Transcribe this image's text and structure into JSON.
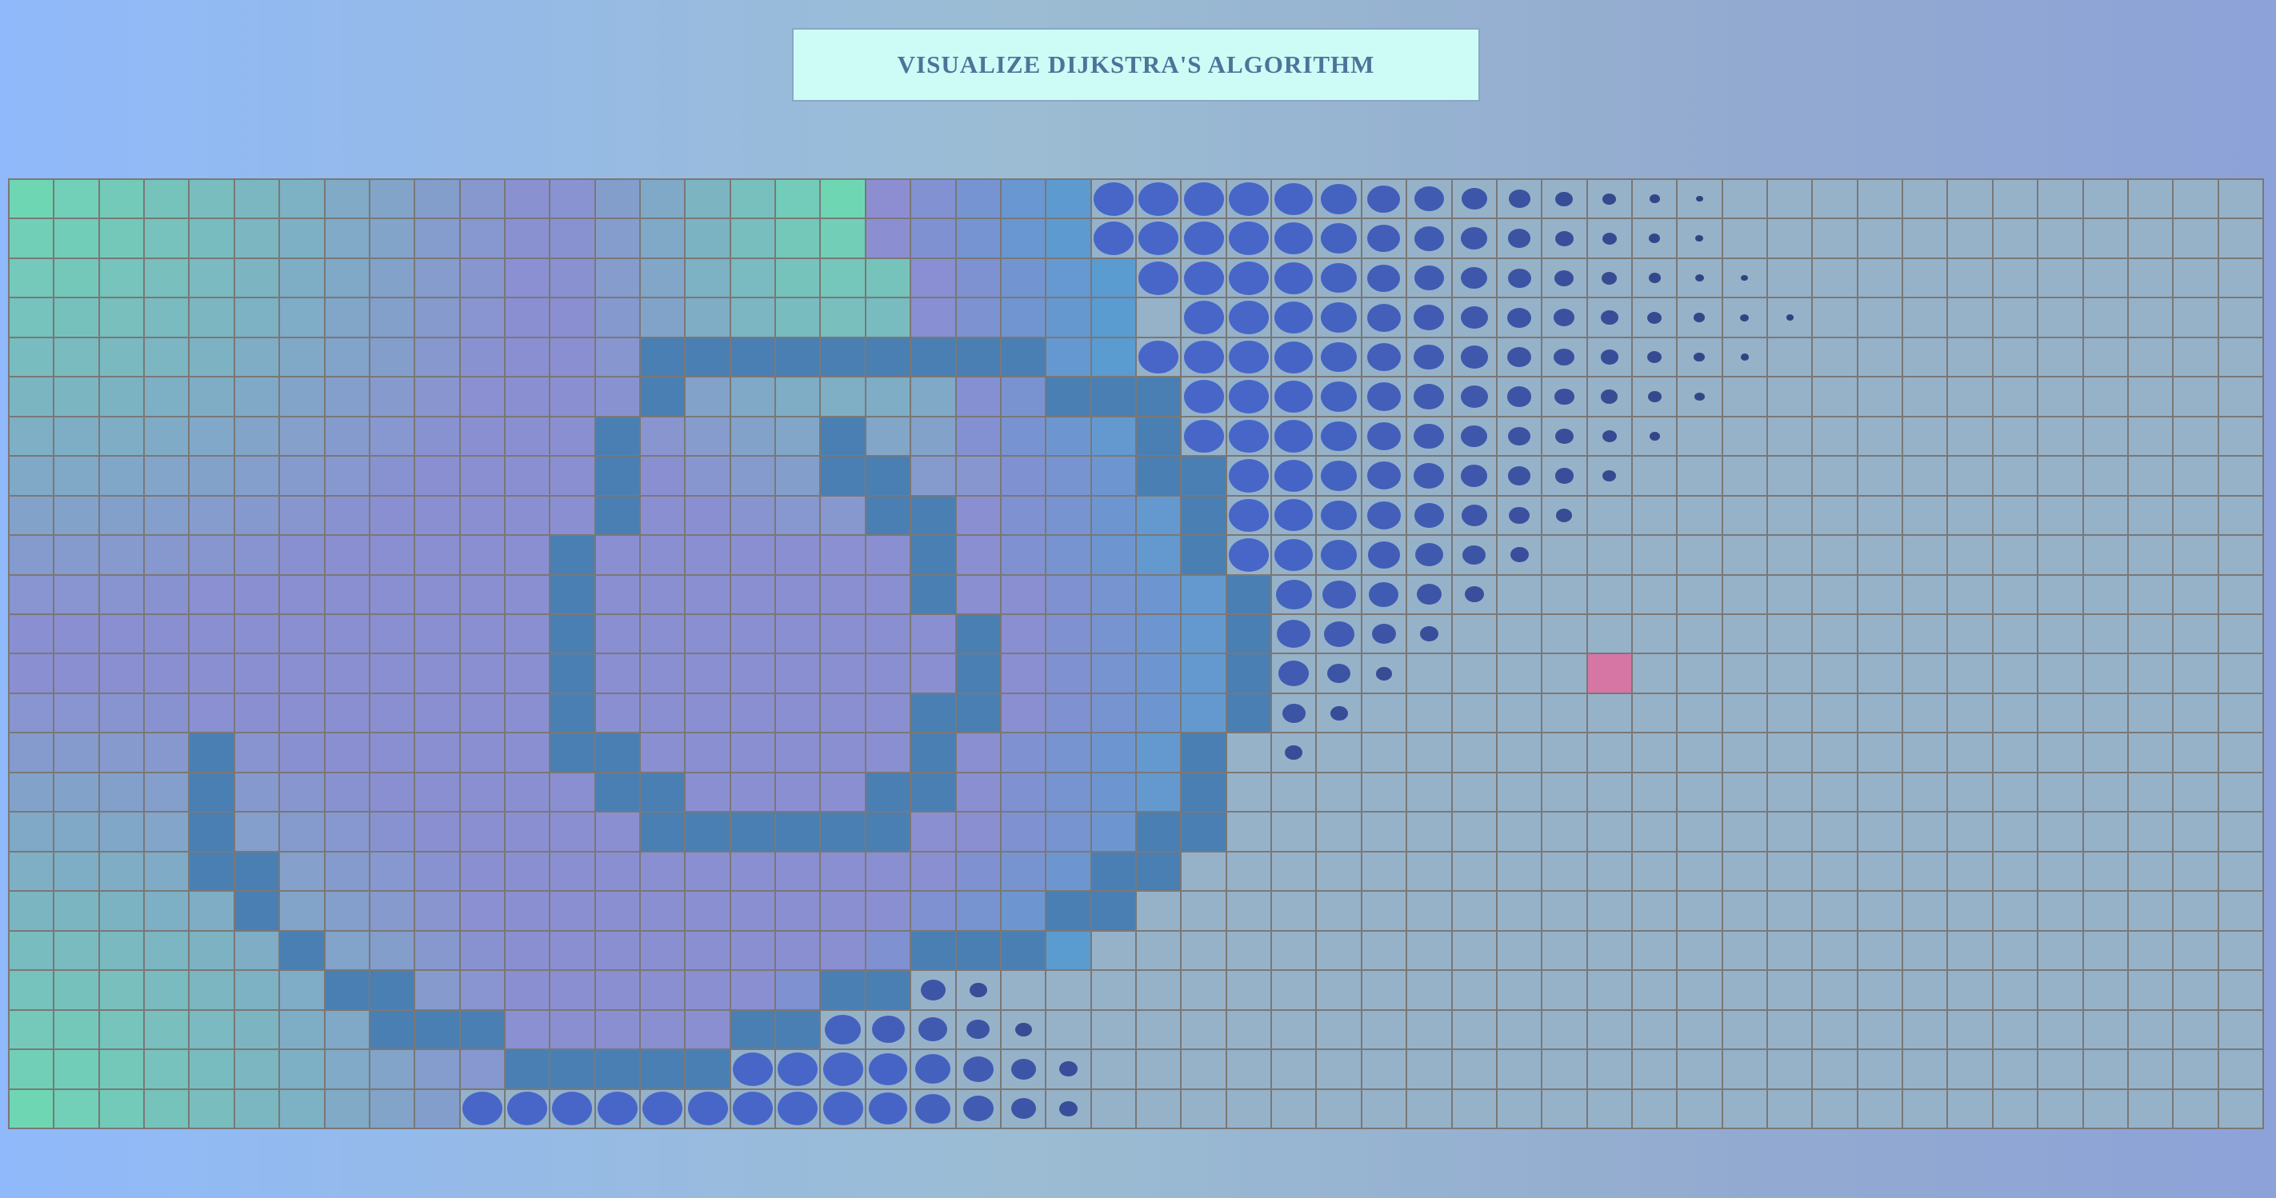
{
  "header": {
    "title": "VISUALIZE DIJKSTRA'S ALGORITHM"
  },
  "grid": {
    "rows": 24,
    "cols": 50,
    "target": [
      12,
      35
    ],
    "walls": [
      [
        4,
        14
      ],
      [
        4,
        15
      ],
      [
        4,
        16
      ],
      [
        4,
        17
      ],
      [
        4,
        18
      ],
      [
        4,
        19
      ],
      [
        4,
        20
      ],
      [
        4,
        21
      ],
      [
        4,
        22
      ],
      [
        5,
        14
      ],
      [
        5,
        23
      ],
      [
        5,
        24
      ],
      [
        5,
        25
      ],
      [
        6,
        13
      ],
      [
        6,
        18
      ],
      [
        6,
        25
      ],
      [
        7,
        13
      ],
      [
        7,
        18
      ],
      [
        7,
        19
      ],
      [
        7,
        25
      ],
      [
        7,
        26
      ],
      [
        8,
        13
      ],
      [
        8,
        19
      ],
      [
        8,
        20
      ],
      [
        8,
        26
      ],
      [
        9,
        12
      ],
      [
        9,
        20
      ],
      [
        9,
        26
      ],
      [
        10,
        12
      ],
      [
        10,
        20
      ],
      [
        10,
        27
      ],
      [
        11,
        12
      ],
      [
        11,
        21
      ],
      [
        11,
        27
      ],
      [
        12,
        12
      ],
      [
        12,
        21
      ],
      [
        12,
        27
      ],
      [
        13,
        12
      ],
      [
        13,
        20
      ],
      [
        13,
        21
      ],
      [
        13,
        27
      ],
      [
        14,
        4
      ],
      [
        14,
        12
      ],
      [
        14,
        13
      ],
      [
        14,
        20
      ],
      [
        14,
        26
      ],
      [
        15,
        4
      ],
      [
        15,
        13
      ],
      [
        15,
        14
      ],
      [
        15,
        19
      ],
      [
        15,
        20
      ],
      [
        15,
        26
      ],
      [
        16,
        4
      ],
      [
        16,
        14
      ],
      [
        16,
        15
      ],
      [
        16,
        16
      ],
      [
        16,
        17
      ],
      [
        16,
        18
      ],
      [
        16,
        19
      ],
      [
        16,
        25
      ],
      [
        16,
        26
      ],
      [
        17,
        4
      ],
      [
        17,
        5
      ],
      [
        17,
        24
      ],
      [
        17,
        25
      ],
      [
        18,
        5
      ],
      [
        18,
        23
      ],
      [
        18,
        24
      ],
      [
        19,
        6
      ],
      [
        19,
        20
      ],
      [
        19,
        21
      ],
      [
        19,
        22
      ],
      [
        20,
        7
      ],
      [
        20,
        8
      ],
      [
        20,
        18
      ],
      [
        20,
        19
      ],
      [
        21,
        8
      ],
      [
        21,
        9
      ],
      [
        21,
        10
      ],
      [
        21,
        16
      ],
      [
        21,
        17
      ],
      [
        22,
        11
      ],
      [
        22,
        12
      ],
      [
        22,
        13
      ],
      [
        22,
        14
      ],
      [
        22,
        15
      ]
    ],
    "frontier_dots": [
      [
        0,
        24,
        1.0
      ],
      [
        0,
        25,
        1.0
      ],
      [
        0,
        26,
        1.0
      ],
      [
        0,
        27,
        1.0
      ],
      [
        0,
        28,
        0.96
      ],
      [
        0,
        29,
        0.9
      ],
      [
        0,
        30,
        0.82
      ],
      [
        0,
        31,
        0.74
      ],
      [
        0,
        32,
        0.64
      ],
      [
        0,
        33,
        0.54
      ],
      [
        0,
        34,
        0.44
      ],
      [
        0,
        35,
        0.34
      ],
      [
        0,
        36,
        0.26
      ],
      [
        0,
        37,
        0.18
      ],
      [
        1,
        24,
        1.0
      ],
      [
        1,
        25,
        1.0
      ],
      [
        1,
        26,
        1.0
      ],
      [
        1,
        27,
        1.0
      ],
      [
        1,
        28,
        0.96
      ],
      [
        1,
        29,
        0.9
      ],
      [
        1,
        30,
        0.82
      ],
      [
        1,
        31,
        0.74
      ],
      [
        1,
        32,
        0.66
      ],
      [
        1,
        33,
        0.56
      ],
      [
        1,
        34,
        0.46
      ],
      [
        1,
        35,
        0.36
      ],
      [
        1,
        36,
        0.28
      ],
      [
        1,
        37,
        0.2
      ],
      [
        2,
        25,
        1.0
      ],
      [
        2,
        26,
        1.0
      ],
      [
        2,
        27,
        1.0
      ],
      [
        2,
        28,
        0.96
      ],
      [
        2,
        29,
        0.9
      ],
      [
        2,
        30,
        0.82
      ],
      [
        2,
        31,
        0.74
      ],
      [
        2,
        32,
        0.66
      ],
      [
        2,
        33,
        0.58
      ],
      [
        2,
        34,
        0.48
      ],
      [
        2,
        35,
        0.38
      ],
      [
        2,
        36,
        0.3
      ],
      [
        2,
        37,
        0.22
      ],
      [
        2,
        38,
        0.18
      ],
      [
        3,
        26,
        1.0
      ],
      [
        3,
        27,
        1.0
      ],
      [
        3,
        28,
        0.96
      ],
      [
        3,
        29,
        0.9
      ],
      [
        3,
        30,
        0.84
      ],
      [
        3,
        31,
        0.76
      ],
      [
        3,
        32,
        0.68
      ],
      [
        3,
        33,
        0.6
      ],
      [
        3,
        34,
        0.52
      ],
      [
        3,
        35,
        0.44
      ],
      [
        3,
        36,
        0.36
      ],
      [
        3,
        37,
        0.28
      ],
      [
        3,
        38,
        0.22
      ],
      [
        3,
        39,
        0.18
      ],
      [
        4,
        25,
        1.0
      ],
      [
        4,
        26,
        1.0
      ],
      [
        4,
        27,
        1.0
      ],
      [
        4,
        28,
        0.96
      ],
      [
        4,
        29,
        0.9
      ],
      [
        4,
        30,
        0.84
      ],
      [
        4,
        31,
        0.76
      ],
      [
        4,
        32,
        0.68
      ],
      [
        4,
        33,
        0.6
      ],
      [
        4,
        34,
        0.52
      ],
      [
        4,
        35,
        0.44
      ],
      [
        4,
        36,
        0.36
      ],
      [
        4,
        37,
        0.28
      ],
      [
        4,
        38,
        0.2
      ],
      [
        5,
        26,
        1.0
      ],
      [
        5,
        27,
        1.0
      ],
      [
        5,
        28,
        0.96
      ],
      [
        5,
        29,
        0.9
      ],
      [
        5,
        30,
        0.84
      ],
      [
        5,
        31,
        0.76
      ],
      [
        5,
        32,
        0.68
      ],
      [
        5,
        33,
        0.6
      ],
      [
        5,
        34,
        0.5
      ],
      [
        5,
        35,
        0.42
      ],
      [
        5,
        36,
        0.34
      ],
      [
        5,
        37,
        0.26
      ],
      [
        6,
        26,
        1.0
      ],
      [
        6,
        27,
        1.0
      ],
      [
        6,
        28,
        0.96
      ],
      [
        6,
        29,
        0.9
      ],
      [
        6,
        30,
        0.84
      ],
      [
        6,
        31,
        0.76
      ],
      [
        6,
        32,
        0.66
      ],
      [
        6,
        33,
        0.56
      ],
      [
        6,
        34,
        0.46
      ],
      [
        6,
        35,
        0.36
      ],
      [
        6,
        36,
        0.26
      ],
      [
        7,
        27,
        1.0
      ],
      [
        7,
        28,
        0.96
      ],
      [
        7,
        29,
        0.9
      ],
      [
        7,
        30,
        0.84
      ],
      [
        7,
        31,
        0.76
      ],
      [
        7,
        32,
        0.66
      ],
      [
        7,
        33,
        0.56
      ],
      [
        7,
        34,
        0.46
      ],
      [
        7,
        35,
        0.34
      ],
      [
        8,
        27,
        1.0
      ],
      [
        8,
        28,
        0.96
      ],
      [
        8,
        29,
        0.9
      ],
      [
        8,
        30,
        0.84
      ],
      [
        8,
        31,
        0.74
      ],
      [
        8,
        32,
        0.64
      ],
      [
        8,
        33,
        0.52
      ],
      [
        8,
        34,
        0.4
      ],
      [
        9,
        27,
        1.0
      ],
      [
        9,
        28,
        0.96
      ],
      [
        9,
        29,
        0.9
      ],
      [
        9,
        30,
        0.8
      ],
      [
        9,
        31,
        0.7
      ],
      [
        9,
        32,
        0.58
      ],
      [
        9,
        33,
        0.46
      ],
      [
        10,
        28,
        0.9
      ],
      [
        10,
        29,
        0.84
      ],
      [
        10,
        30,
        0.74
      ],
      [
        10,
        31,
        0.62
      ],
      [
        10,
        32,
        0.48
      ],
      [
        11,
        28,
        0.84
      ],
      [
        11,
        29,
        0.76
      ],
      [
        11,
        30,
        0.6
      ],
      [
        11,
        31,
        0.46
      ],
      [
        12,
        28,
        0.76
      ],
      [
        12,
        29,
        0.58
      ],
      [
        12,
        30,
        0.4
      ],
      [
        13,
        28,
        0.58
      ],
      [
        13,
        29,
        0.44
      ],
      [
        14,
        28,
        0.44
      ],
      [
        19,
        20,
        0.42
      ],
      [
        20,
        18,
        0.84
      ],
      [
        20,
        19,
        0.78
      ],
      [
        20,
        20,
        0.62
      ],
      [
        20,
        21,
        0.44
      ],
      [
        21,
        16,
        1.0
      ],
      [
        21,
        17,
        1.0
      ],
      [
        21,
        18,
        0.9
      ],
      [
        21,
        19,
        0.82
      ],
      [
        21,
        20,
        0.72
      ],
      [
        21,
        21,
        0.58
      ],
      [
        21,
        22,
        0.42
      ],
      [
        22,
        16,
        1.0
      ],
      [
        22,
        17,
        1.0
      ],
      [
        22,
        18,
        1.0
      ],
      [
        22,
        19,
        0.96
      ],
      [
        22,
        20,
        0.88
      ],
      [
        22,
        21,
        0.76
      ],
      [
        22,
        22,
        0.62
      ],
      [
        22,
        23,
        0.46
      ],
      [
        23,
        10,
        1.0
      ],
      [
        23,
        11,
        1.0
      ],
      [
        23,
        12,
        1.0
      ],
      [
        23,
        13,
        1.0
      ],
      [
        23,
        14,
        1.0
      ],
      [
        23,
        15,
        1.0
      ],
      [
        23,
        16,
        1.0
      ],
      [
        23,
        17,
        1.0
      ],
      [
        23,
        18,
        1.0
      ],
      [
        23,
        19,
        0.96
      ],
      [
        23,
        20,
        0.88
      ],
      [
        23,
        21,
        0.76
      ],
      [
        23,
        22,
        0.62
      ],
      [
        23,
        23,
        0.46
      ]
    ],
    "visited_region": {
      "row_ends": [
        23,
        23,
        24,
        24,
        24,
        25,
        25,
        26,
        26,
        26,
        27,
        27,
        27,
        27,
        26,
        26,
        26,
        25,
        24,
        23,
        21,
        21,
        21,
        15
      ],
      "row_starts": [
        0,
        0,
        0,
        0,
        0,
        0,
        0,
        0,
        0,
        0,
        0,
        0,
        0,
        0,
        0,
        0,
        0,
        0,
        0,
        0,
        0,
        0,
        0,
        0
      ]
    },
    "colors": {
      "wall": "#4a7fb3",
      "empty": "#96b2c9",
      "target": "#d676a5",
      "visited_mid": "#8a8fd2",
      "visited_teal": "#6fd6b4",
      "visited_blue": "#5a9bd0",
      "dot_near": "#4766c8",
      "dot_far": "#2d3a72"
    }
  }
}
